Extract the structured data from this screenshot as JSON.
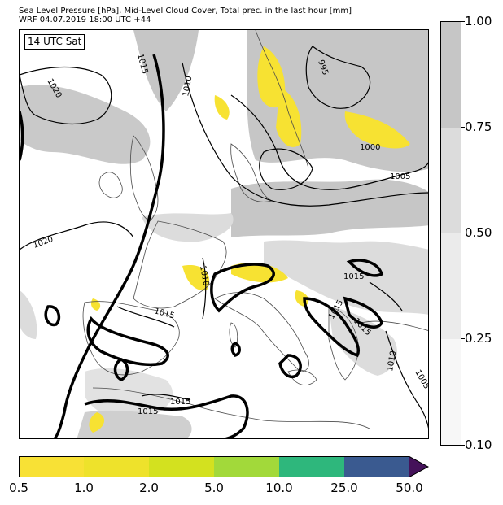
{
  "header": {
    "title_line1": "Sea Level Pressure [hPa], Mid-Level Cloud Cover, Total prec. in the last hour [mm]",
    "title_line2": "WRF 04.07.2019 18:00 UTC +44"
  },
  "map": {
    "time_label": "14 UTC Sat",
    "isobar_labels": [
      "1015",
      "1020",
      "1010",
      "995",
      "1000",
      "1005",
      "1020",
      "1010",
      "1015",
      "1015",
      "1015",
      "1015",
      "1010",
      "1005",
      "1015",
      "1015"
    ],
    "colors": {
      "land_outline": "#4a4a4a",
      "isobar": "#000000",
      "cloud_high": "#c6c6c6",
      "cloud_mid": "#dcdcdc",
      "precip_light": "#f7e232"
    }
  },
  "cloud_colorbar": {
    "ticks": [
      "1.00",
      "0.75",
      "0.50",
      "0.25",
      "0.10"
    ],
    "colors": [
      "#c6c6c6",
      "#dcdcdc",
      "#ebebeb",
      "#f7f7f7"
    ]
  },
  "precip_colorbar": {
    "ticks": [
      "0.5",
      "1.0",
      "2.0",
      "5.0",
      "10.0",
      "25.0",
      "50.0"
    ],
    "colors": [
      "#f8e135",
      "#eee22b",
      "#d3e11f",
      "#a2d93a",
      "#2eb77c",
      "#3a5a90",
      "#45125a"
    ]
  }
}
